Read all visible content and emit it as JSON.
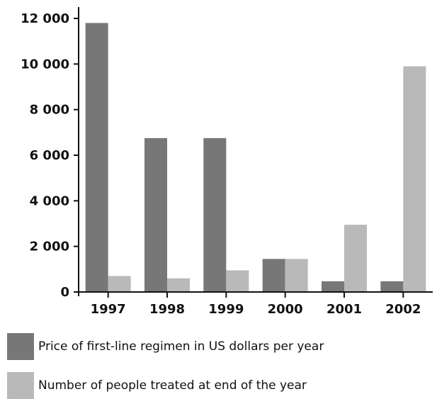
{
  "chart_data": {
    "type": "bar",
    "categories": [
      "1997",
      "1998",
      "1999",
      "2000",
      "2001",
      "2002"
    ],
    "series": [
      {
        "name": "Price of first-line regimen in US dollars per year",
        "values": [
          11800,
          6750,
          6750,
          1450,
          470,
          470
        ],
        "color": "#777777"
      },
      {
        "name": "Number of people treated at end of the year",
        "values": [
          700,
          600,
          950,
          1450,
          2950,
          9900
        ],
        "color": "#b9b9b9"
      }
    ],
    "yticks": [
      "0",
      "2 000",
      "4 000",
      "6 000",
      "8 000",
      "10 000",
      "12 000"
    ],
    "ylim": [
      0,
      12000
    ],
    "title": "",
    "xlabel": "",
    "ylabel": "",
    "grid": false,
    "legend_position": "bottom"
  }
}
